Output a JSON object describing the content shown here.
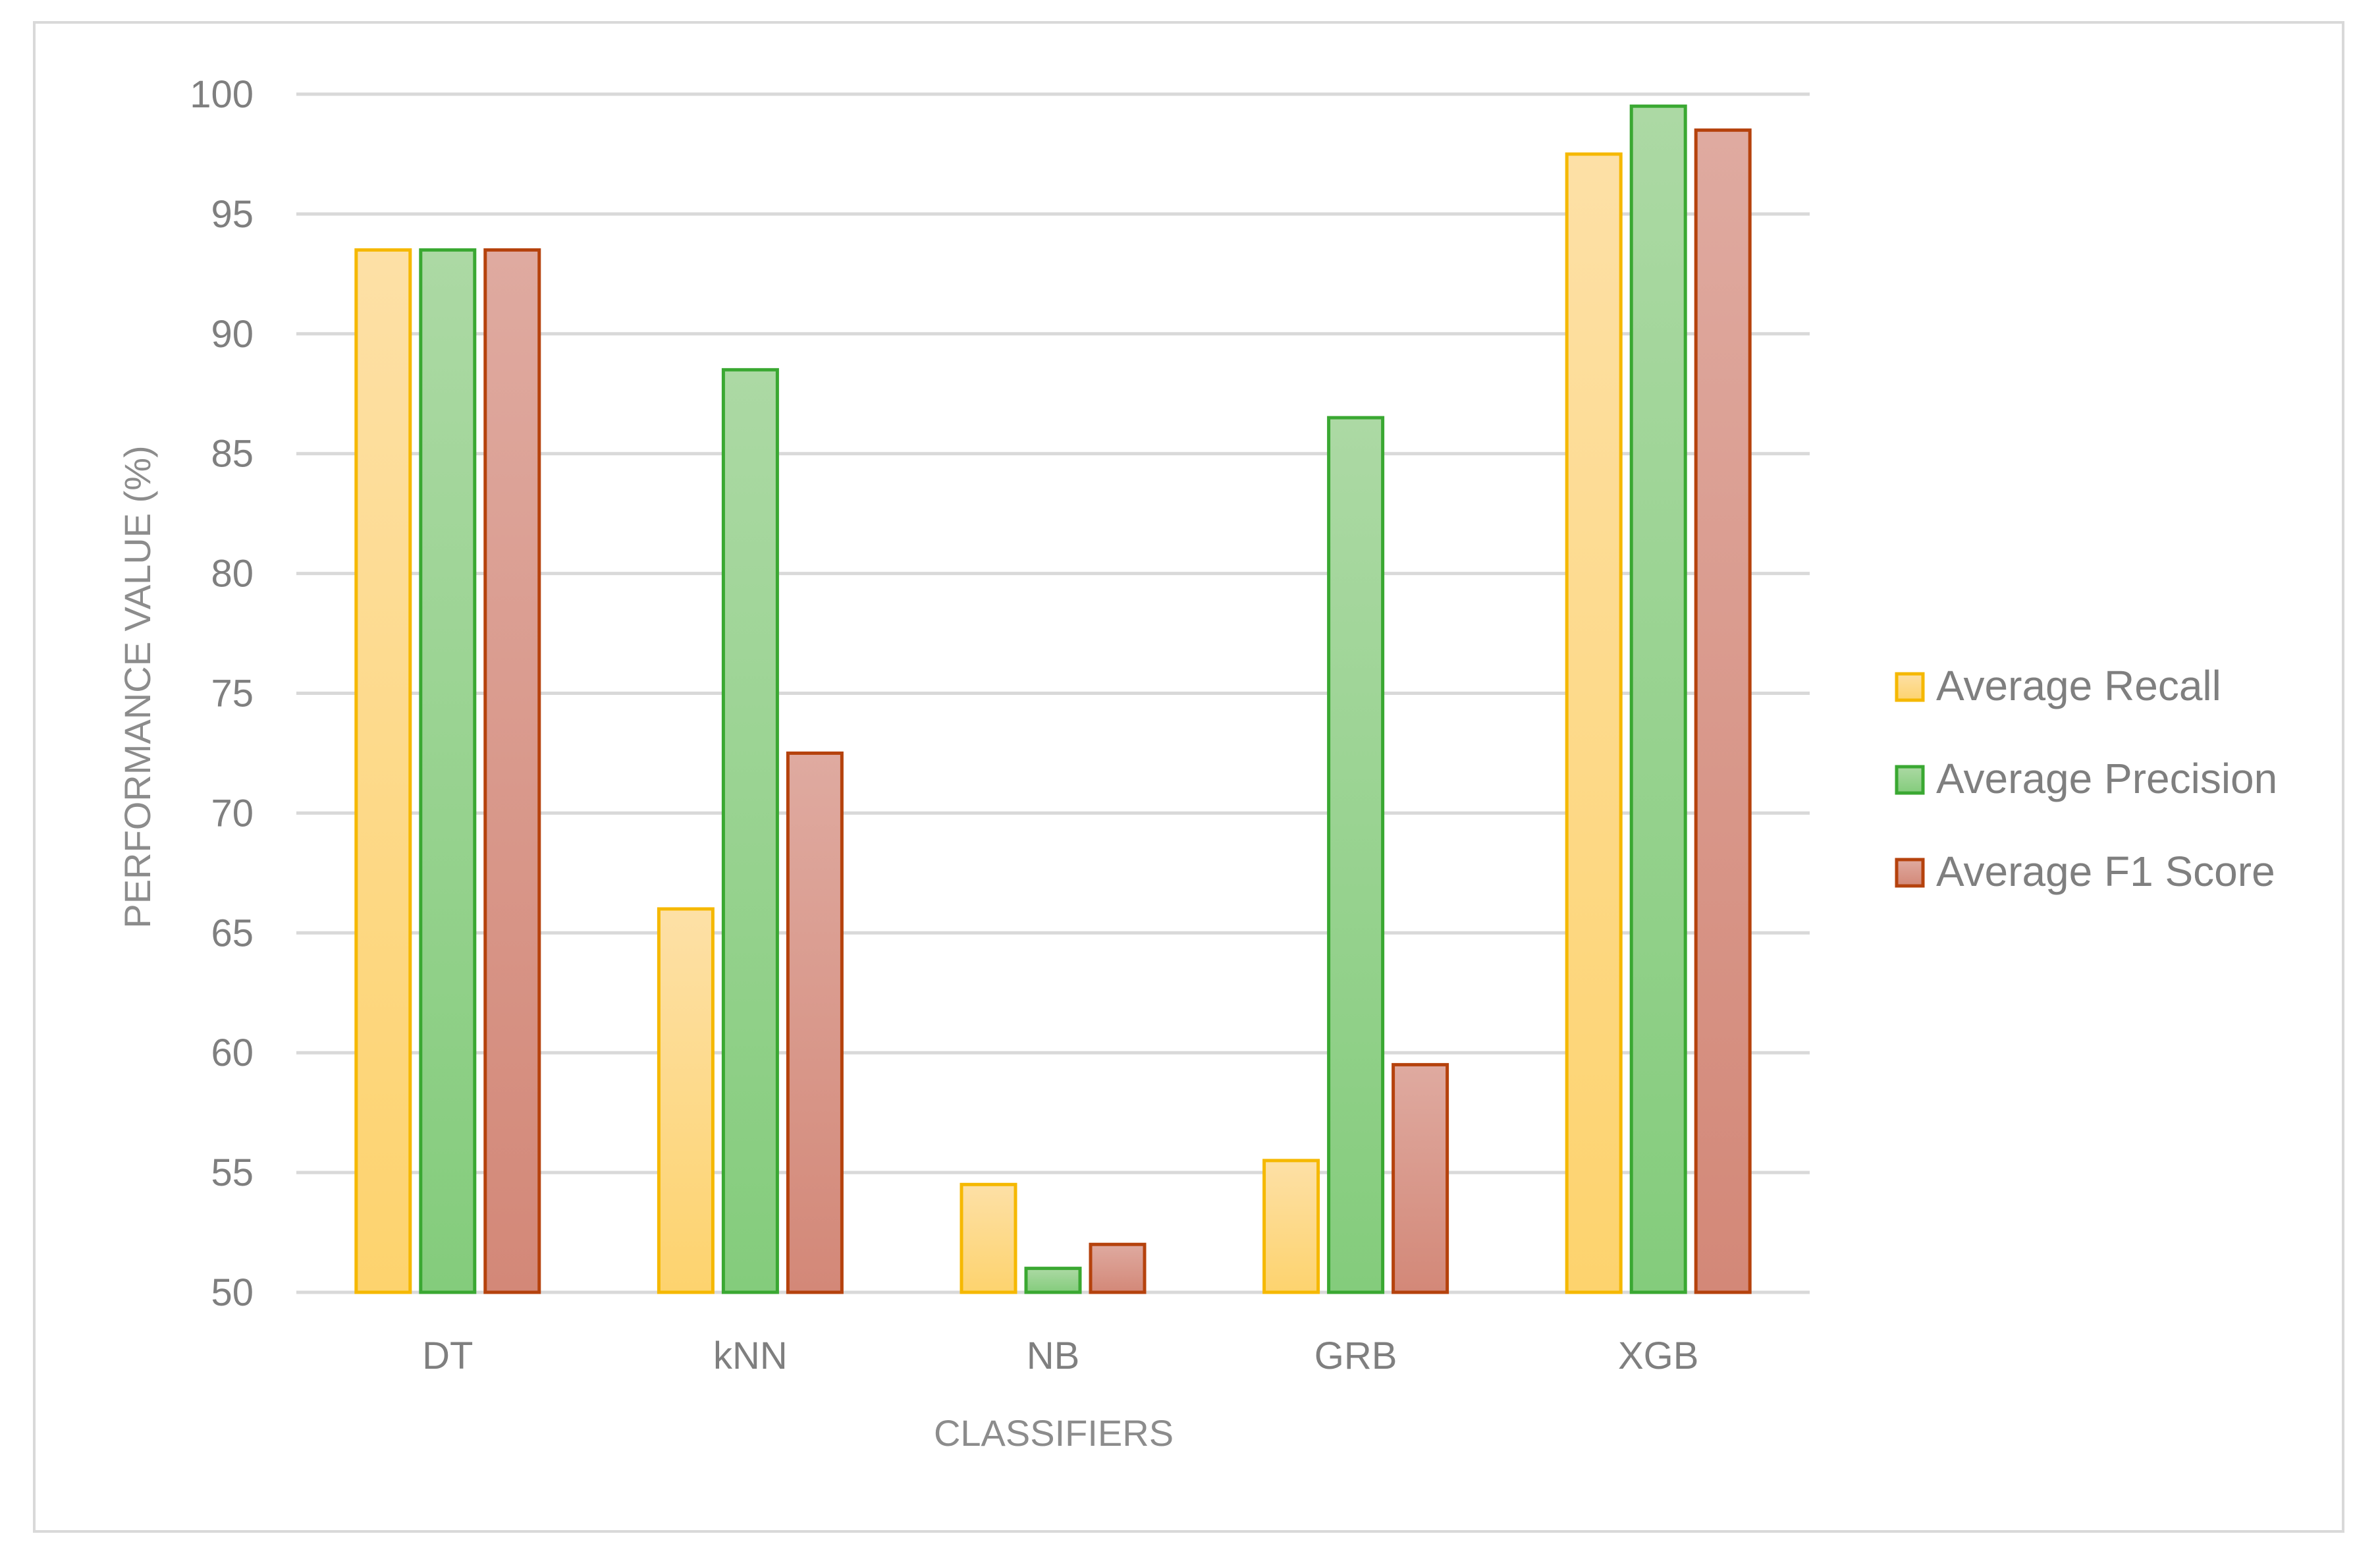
{
  "chart_data": {
    "type": "bar",
    "title": "",
    "xlabel": "CLASSIFIERS",
    "ylabel": "PERFORMANCE VALUE (%)",
    "categories": [
      "DT",
      "kNN",
      "NB",
      "GRB",
      "XGB"
    ],
    "ylim": [
      50,
      100
    ],
    "yticks": [
      50,
      55,
      60,
      65,
      70,
      75,
      80,
      85,
      90,
      95,
      100
    ],
    "grid": true,
    "legend_position": "right",
    "series": [
      {
        "name": "Average Recall",
        "values": [
          93.5,
          66,
          54.5,
          55.5,
          97.5
        ],
        "fill_top": "#fde0a6",
        "fill_bottom": "#fdd36e",
        "stroke": "#f5b800"
      },
      {
        "name": "Average Precision",
        "values": [
          93.5,
          88.5,
          51,
          86.5,
          99.5
        ],
        "fill_top": "#acd9a4",
        "fill_bottom": "#84cc7c",
        "stroke": "#3aa832"
      },
      {
        "name": "Average F1 Score",
        "values": [
          93.5,
          72.5,
          52,
          59.5,
          98.5
        ],
        "fill_top": "#dfaaa0",
        "fill_bottom": "#d38878",
        "stroke": "#b5420d"
      }
    ]
  },
  "colors": {
    "gridline": "#d9d9d9",
    "text": "#7f7f7f",
    "border": "#d9d9d9"
  }
}
